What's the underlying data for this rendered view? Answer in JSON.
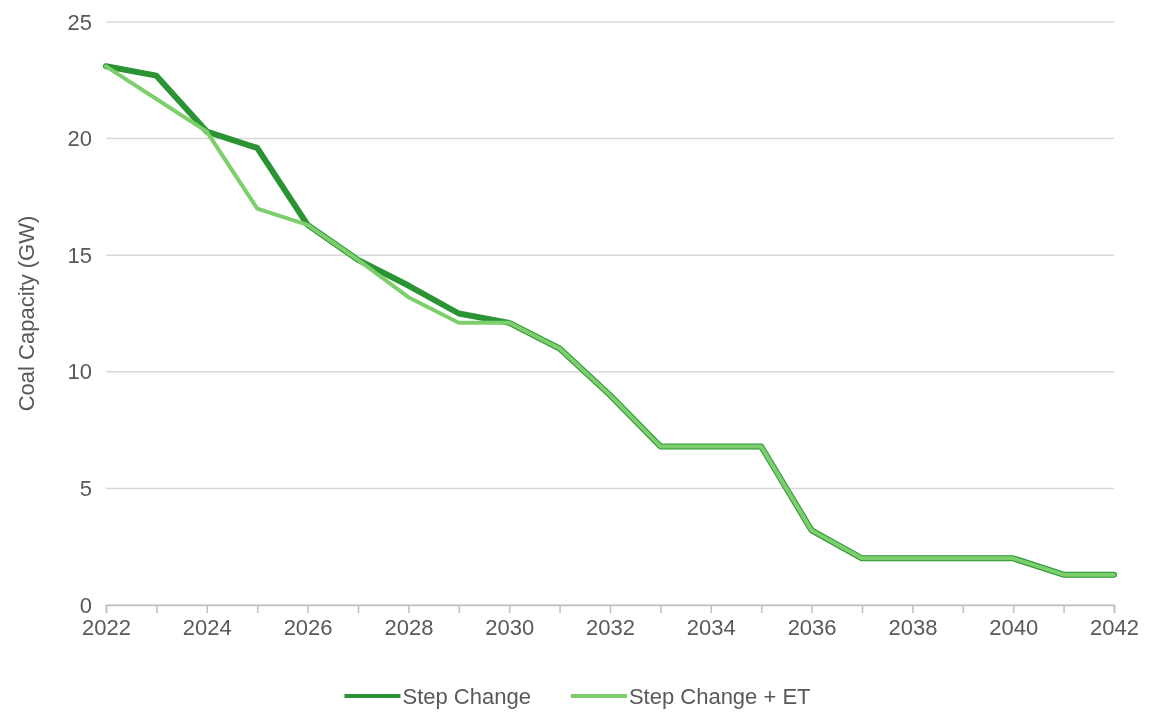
{
  "chart_data": {
    "type": "line",
    "ylabel": "Coal Capacity (GW)",
    "x": [
      2022,
      2023,
      2024,
      2025,
      2026,
      2027,
      2028,
      2029,
      2030,
      2031,
      2032,
      2033,
      2034,
      2035,
      2036,
      2037,
      2038,
      2039,
      2040,
      2041,
      2042
    ],
    "series": [
      {
        "name": "Step Change",
        "color": "#2a9434",
        "values": [
          23.1,
          22.7,
          20.3,
          19.6,
          16.3,
          14.8,
          13.7,
          12.5,
          12.1,
          11.0,
          9.0,
          6.8,
          6.8,
          6.8,
          3.2,
          2.0,
          2.0,
          2.0,
          2.0,
          1.3,
          1.3
        ]
      },
      {
        "name": "Step Change + ET",
        "color": "#7ccf6c",
        "values": [
          23.1,
          21.7,
          20.3,
          17.0,
          16.3,
          14.8,
          13.2,
          12.1,
          12.1,
          11.0,
          9.0,
          6.8,
          6.8,
          6.8,
          3.2,
          2.0,
          2.0,
          2.0,
          2.0,
          1.3,
          1.3
        ]
      }
    ],
    "xlim": [
      2022,
      2042
    ],
    "xticks": [
      2022,
      {
        "value": 2023,
        "label": null
      },
      2024,
      {
        "value": 2025,
        "label": null
      },
      2026,
      {
        "value": 2027,
        "label": null
      },
      2028,
      {
        "value": 2029,
        "label": null
      },
      2030,
      {
        "value": 2031,
        "label": null
      },
      2032,
      {
        "value": 2033,
        "label": null
      },
      2034,
      {
        "value": 2035,
        "label": null
      },
      2036,
      {
        "value": 2037,
        "label": null
      },
      2038,
      {
        "value": 2039,
        "label": null
      },
      2040,
      {
        "value": 2041,
        "label": null
      },
      2042
    ],
    "ylim": [
      0,
      25
    ],
    "yticks": [
      0,
      5,
      10,
      15,
      20,
      25
    ],
    "grid": "y",
    "legend": "bottom",
    "marker": "none",
    "line_style": "solid"
  }
}
